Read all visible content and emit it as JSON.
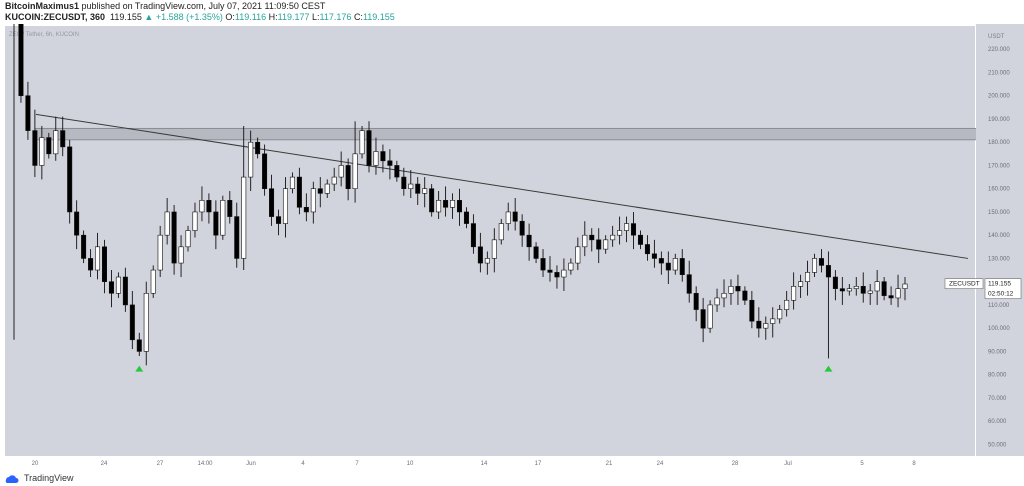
{
  "header": {
    "publisher": "BitcoinMaximus1",
    "published_text": "published on TradingView.com, July 07, 2021 11:09:50 CEST",
    "symbol": "KUCOIN:ZECUSDT, 360",
    "last": "119.155",
    "change": "▲ +1.588 (+1.35%)",
    "o_label": "O:",
    "o_value": "119.116",
    "h_label": "H:",
    "h_value": "119.177",
    "l_label": "L:",
    "l_value": "117.176",
    "c_label": "C:",
    "c_value": "119.155"
  },
  "chart": {
    "watermark": "ZEC / Tether, 6h, KUCOIN",
    "currency": "USDT",
    "price_label": "ZECUSDT",
    "last_price": "119.155",
    "countdown": "02:50:12",
    "colors": {
      "background": "#d1d4dc",
      "up": "#ffffff",
      "down": "#000000",
      "marker": "#26c938"
    }
  },
  "footer": {
    "brand": "TradingView"
  },
  "chart_data": {
    "type": "candlestick",
    "series": [
      {
        "name": "ZECUSDT"
      }
    ],
    "y_ticks": [
      "50.000",
      "60.000",
      "70.000",
      "80.000",
      "90.000",
      "100.000",
      "110.000",
      "120.000",
      "130.000",
      "140.000",
      "150.000",
      "160.000",
      "170.000",
      "180.000",
      "190.000",
      "200.000",
      "210.000",
      "220.000"
    ],
    "ylim": [
      45,
      230
    ],
    "x_ticks": [
      "20",
      "24",
      "27",
      "14:00",
      "Jun",
      "4",
      "7",
      "10",
      "14",
      "17",
      "21",
      "24",
      "28",
      "Jul",
      "5",
      "8"
    ],
    "annotations": {
      "resistance_zone": [
        181,
        186
      ],
      "descending_trendline": [
        {
          "at": "20",
          "value": 192
        },
        {
          "at": "8",
          "value": 130
        }
      ],
      "bullish_markers": [
        "24",
        "24"
      ]
    },
    "path": [
      248,
      200,
      185,
      170,
      182,
      175,
      185,
      178,
      150,
      140,
      130,
      125,
      135,
      120,
      115,
      122,
      110,
      95,
      90,
      115,
      125,
      140,
      150,
      128,
      135,
      142,
      150,
      155,
      150,
      140,
      155,
      148,
      130,
      165,
      180,
      175,
      160,
      148,
      145,
      160,
      165,
      152,
      150,
      160,
      158,
      162,
      165,
      170,
      160,
      175,
      185,
      170,
      176,
      172,
      170,
      165,
      160,
      162,
      158,
      160,
      150,
      155,
      152,
      155,
      150,
      145,
      135,
      128,
      130,
      138,
      145,
      150,
      146,
      140,
      135,
      130,
      125,
      124,
      122,
      125,
      128,
      135,
      140,
      138,
      134,
      138,
      140,
      142,
      145,
      140,
      136,
      132,
      130,
      128,
      125,
      130,
      123,
      115,
      108,
      100,
      110,
      113,
      115,
      118,
      116,
      112,
      103,
      100,
      102,
      104,
      108,
      112,
      118,
      120,
      124,
      130,
      127,
      122,
      117,
      116,
      117,
      118,
      115,
      116,
      120,
      114,
      113,
      117,
      119
    ],
    "lows": [
      [
        18,
        88
      ],
      [
        117,
        87
      ]
    ]
  }
}
